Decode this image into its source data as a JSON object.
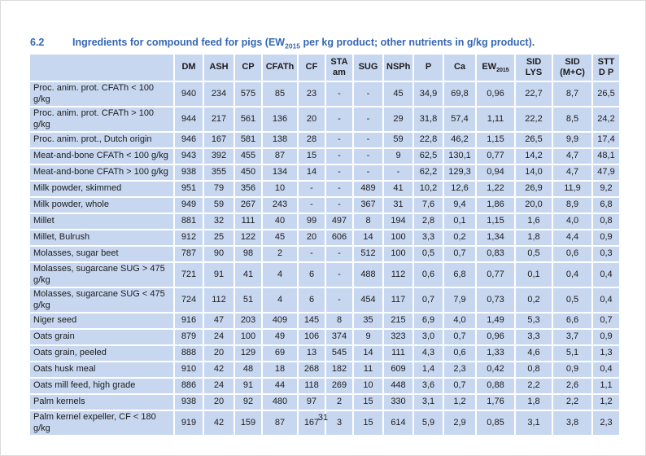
{
  "page": {
    "section_number": "6.2",
    "title_prefix": "Ingredients for compound feed for pigs (EW",
    "title_sub": "2015",
    "title_suffix": " per kg product; other nutrients in g/kg product).",
    "page_number": "31"
  },
  "colors": {
    "title_blue": "#3567b2",
    "cell_blue": "#c8d7f0",
    "grid_line": "#ffffff",
    "text": "#1c1c1c"
  },
  "table": {
    "columns": [
      {
        "label": "DM"
      },
      {
        "label": "ASH"
      },
      {
        "label": "CP"
      },
      {
        "label": "CFATh"
      },
      {
        "label": "CF"
      },
      {
        "lines": [
          "STA",
          "am"
        ]
      },
      {
        "label": "SUG"
      },
      {
        "label": "NSPh"
      },
      {
        "label": "P"
      },
      {
        "label": "Ca"
      },
      {
        "label": "EW",
        "sub": "2015"
      },
      {
        "lines": [
          "SID",
          "LYS"
        ]
      },
      {
        "lines": [
          "SID",
          "(M+C)"
        ]
      },
      {
        "lines": [
          "STT",
          "D P"
        ]
      }
    ],
    "rows": [
      {
        "name": "Proc. anim. prot. CFATh < 100 g/kg",
        "values": [
          "940",
          "234",
          "575",
          "85",
          "23",
          "-",
          "-",
          "45",
          "34,9",
          "69,8",
          "0,96",
          "22,7",
          "8,7",
          "26,5"
        ]
      },
      {
        "name": "Proc. anim. prot. CFATh > 100 g/kg",
        "values": [
          "944",
          "217",
          "561",
          "136",
          "20",
          "-",
          "-",
          "29",
          "31,8",
          "57,4",
          "1,11",
          "22,2",
          "8,5",
          "24,2"
        ]
      },
      {
        "name": "Proc. anim. prot., Dutch origin",
        "values": [
          "946",
          "167",
          "581",
          "138",
          "28",
          "-",
          "-",
          "59",
          "22,8",
          "46,2",
          "1,15",
          "26,5",
          "9,9",
          "17,4"
        ]
      },
      {
        "name": "Meat-and-bone CFATh < 100 g/kg",
        "values": [
          "943",
          "392",
          "455",
          "87",
          "15",
          "-",
          "-",
          "9",
          "62,5",
          "130,1",
          "0,77",
          "14,2",
          "4,7",
          "48,1"
        ]
      },
      {
        "name": "Meat-and-bone CFATh > 100 g/kg",
        "values": [
          "938",
          "355",
          "450",
          "134",
          "14",
          "-",
          "-",
          "-",
          "62,2",
          "129,3",
          "0,94",
          "14,0",
          "4,7",
          "47,9"
        ]
      },
      {
        "name": "Milk powder, skimmed",
        "values": [
          "951",
          "79",
          "356",
          "10",
          "-",
          "-",
          "489",
          "41",
          "10,2",
          "12,6",
          "1,22",
          "26,9",
          "11,9",
          "9,2"
        ]
      },
      {
        "name": "Milk powder, whole",
        "values": [
          "949",
          "59",
          "267",
          "243",
          "-",
          "-",
          "367",
          "31",
          "7,6",
          "9,4",
          "1,86",
          "20,0",
          "8,9",
          "6,8"
        ]
      },
      {
        "name": "Millet",
        "values": [
          "881",
          "32",
          "111",
          "40",
          "99",
          "497",
          "8",
          "194",
          "2,8",
          "0,1",
          "1,15",
          "1,6",
          "4,0",
          "0,8"
        ]
      },
      {
        "name": "Millet, Bulrush",
        "values": [
          "912",
          "25",
          "122",
          "45",
          "20",
          "606",
          "14",
          "100",
          "3,3",
          "0,2",
          "1,34",
          "1,8",
          "4,4",
          "0,9"
        ]
      },
      {
        "name": "Molasses, sugar beet",
        "values": [
          "787",
          "90",
          "98",
          "2",
          "-",
          "-",
          "512",
          "100",
          "0,5",
          "0,7",
          "0,83",
          "0,5",
          "0,6",
          "0,3"
        ]
      },
      {
        "name": "Molasses, sugarcane SUG > 475 g/kg",
        "values": [
          "721",
          "91",
          "41",
          "4",
          "6",
          "-",
          "488",
          "112",
          "0,6",
          "6,8",
          "0,77",
          "0,1",
          "0,4",
          "0,4"
        ]
      },
      {
        "name": "Molasses, sugarcane SUG < 475 g/kg",
        "values": [
          "724",
          "112",
          "51",
          "4",
          "6",
          "-",
          "454",
          "117",
          "0,7",
          "7,9",
          "0,73",
          "0,2",
          "0,5",
          "0,4"
        ]
      },
      {
        "name": "Niger seed",
        "values": [
          "916",
          "47",
          "203",
          "409",
          "145",
          "8",
          "35",
          "215",
          "6,9",
          "4,0",
          "1,49",
          "5,3",
          "6,6",
          "0,7"
        ]
      },
      {
        "name": "Oats grain",
        "values": [
          "879",
          "24",
          "100",
          "49",
          "106",
          "374",
          "9",
          "323",
          "3,0",
          "0,7",
          "0,96",
          "3,3",
          "3,7",
          "0,9"
        ]
      },
      {
        "name": "Oats grain, peeled",
        "values": [
          "888",
          "20",
          "129",
          "69",
          "13",
          "545",
          "14",
          "111",
          "4,3",
          "0,6",
          "1,33",
          "4,6",
          "5,1",
          "1,3"
        ]
      },
      {
        "name": "Oats husk meal",
        "values": [
          "910",
          "42",
          "48",
          "18",
          "268",
          "182",
          "11",
          "609",
          "1,4",
          "2,3",
          "0,42",
          "0,8",
          "0,9",
          "0,4"
        ]
      },
      {
        "name": "Oats mill feed, high grade",
        "values": [
          "886",
          "24",
          "91",
          "44",
          "118",
          "269",
          "10",
          "448",
          "3,6",
          "0,7",
          "0,88",
          "2,2",
          "2,6",
          "1,1"
        ]
      },
      {
        "name": "Palm kernels",
        "values": [
          "938",
          "20",
          "92",
          "480",
          "97",
          "2",
          "15",
          "330",
          "3,1",
          "1,2",
          "1,76",
          "1,8",
          "2,2",
          "1,2"
        ]
      },
      {
        "name": "Palm kernel expeller, CF < 180 g/kg",
        "values": [
          "919",
          "42",
          "159",
          "87",
          "167",
          "3",
          "15",
          "614",
          "5,9",
          "2,9",
          "0,85",
          "3,1",
          "3,8",
          "2,3"
        ]
      }
    ]
  }
}
